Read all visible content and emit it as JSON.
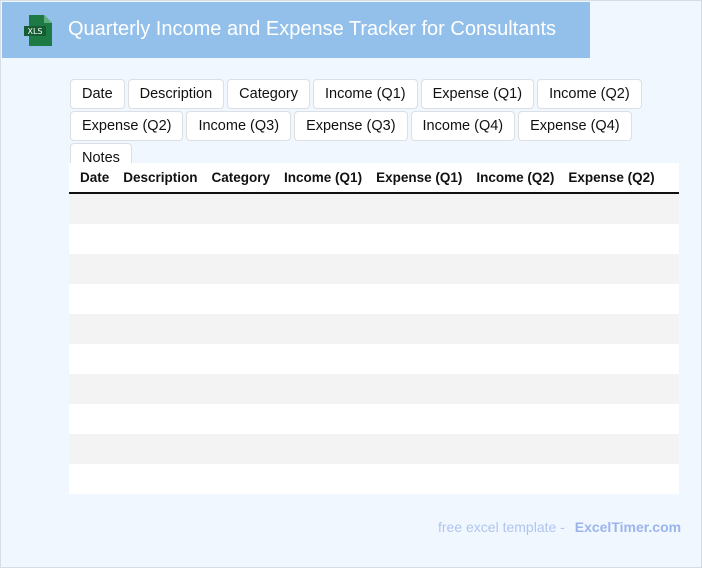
{
  "header": {
    "title": "Quarterly Income and Expense Tracker for Consultants",
    "icon": "xls-file-icon",
    "icon_label": "XLS",
    "bg_color": "#93c0ea"
  },
  "chips": [
    "Date",
    "Description",
    "Category",
    "Income (Q1)",
    "Expense (Q1)",
    "Income (Q2)",
    "Expense (Q2)",
    "Income (Q3)",
    "Expense (Q3)",
    "Income (Q4)",
    "Expense (Q4)",
    "Notes"
  ],
  "table": {
    "columns": [
      "Date",
      "Description",
      "Category",
      "Income (Q1)",
      "Expense (Q1)",
      "Income (Q2)",
      "Expense (Q2)"
    ],
    "row_count": 10
  },
  "footer": {
    "text": "free excel template -",
    "brand": "ExcelTimer.com"
  }
}
